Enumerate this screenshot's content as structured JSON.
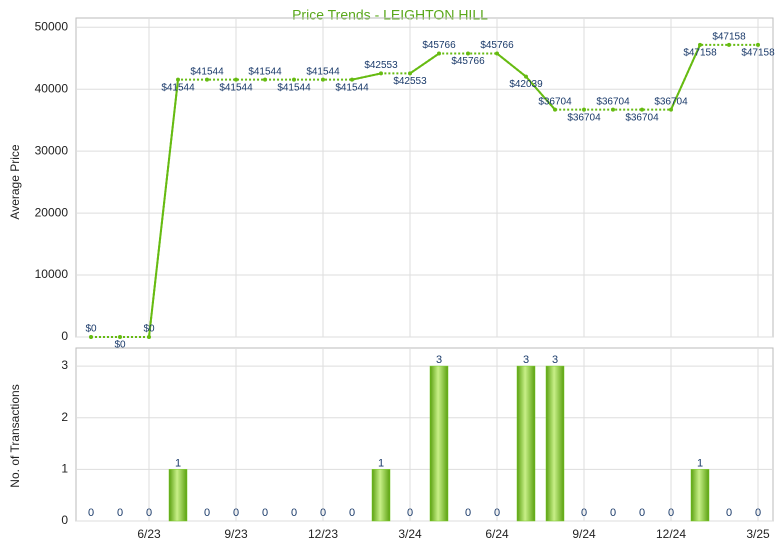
{
  "chart_data": [
    {
      "type": "line",
      "title": "Price Trends - LEIGHTON HILL",
      "y_label": "Average Price",
      "color": "#66bb11",
      "categories": [
        null,
        null,
        "6/23",
        null,
        null,
        "9/23",
        null,
        null,
        "12/23",
        null,
        null,
        "3/24",
        null,
        null,
        "6/24",
        null,
        null,
        "9/24",
        null,
        null,
        "12/24",
        null,
        null,
        "3/25"
      ],
      "values": [
        0,
        0,
        0,
        41544,
        41544,
        41544,
        41544,
        41544,
        41544,
        41544,
        42553,
        42553,
        45766,
        45766,
        45766,
        42039,
        36704,
        36704,
        36704,
        36704,
        36704,
        47158,
        47158,
        47158
      ],
      "value_labels": [
        "$0",
        "$0",
        "$0",
        "$41544",
        "$41544",
        "$41544",
        "$41544",
        "$41544",
        "$41544",
        "$41544",
        "$42553",
        "$42553",
        "$45766",
        "$45766",
        "$45766",
        "$42039",
        "$36704",
        "$36704",
        "$36704",
        "$36704",
        "$36704",
        "$47158",
        "$47158",
        "$47158"
      ],
      "ylim": [
        0,
        51500
      ],
      "yticks": [
        0,
        10000,
        20000,
        30000,
        40000,
        50000
      ],
      "grid": true
    },
    {
      "type": "bar",
      "y_label": "No. of Transactions",
      "color": "#77cc22",
      "categories": [
        null,
        null,
        "6/23",
        null,
        null,
        "9/23",
        null,
        null,
        "12/23",
        null,
        null,
        "3/24",
        null,
        null,
        "6/24",
        null,
        null,
        "9/24",
        null,
        null,
        "12/24",
        null,
        null,
        "3/25"
      ],
      "values": [
        0,
        0,
        0,
        1,
        0,
        0,
        0,
        0,
        0,
        0,
        1,
        0,
        3,
        0,
        0,
        3,
        3,
        0,
        0,
        0,
        0,
        1,
        0,
        0
      ],
      "ylim": [
        0,
        3.35
      ],
      "yticks": [
        0,
        1,
        2,
        3
      ],
      "grid": true
    }
  ]
}
